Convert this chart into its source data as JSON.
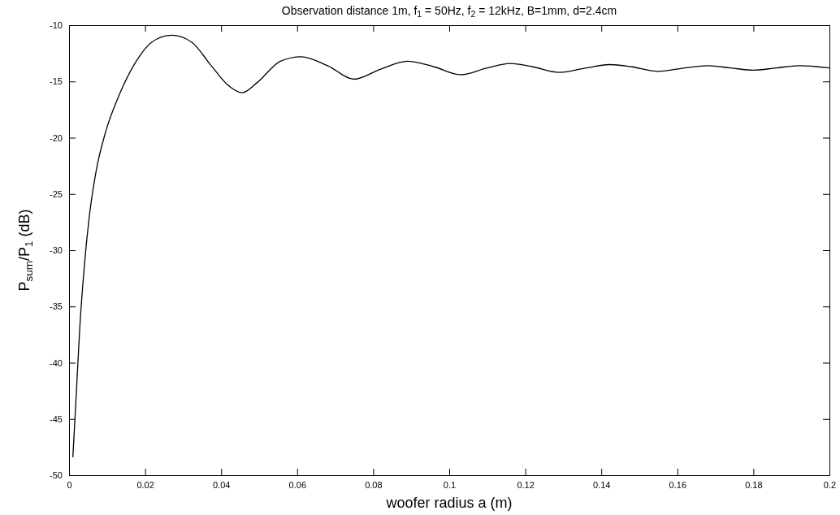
{
  "chart_data": {
    "type": "line",
    "title": "Observation distance 1m, f$_{1}$ = 50Hz, f$_{2}$ = 12kHz, B=1mm, d=2.4cm",
    "xlabel": "woofer radius a (m)",
    "ylabel": "P$_{sum}$/P$_{1}$ (dB)",
    "series": [
      {
        "color": "#000000",
        "x": [
          0.001,
          0.0019,
          0.0028,
          0.0041,
          0.0054,
          0.0071,
          0.0097,
          0.0132,
          0.0175,
          0.0218,
          0.027,
          0.0322,
          0.0374,
          0.0417,
          0.0456,
          0.0495,
          0.0556,
          0.061,
          0.068,
          0.075,
          0.082,
          0.089,
          0.096,
          0.103,
          0.11,
          0.116,
          0.122,
          0.129,
          0.136,
          0.142,
          0.148,
          0.155,
          0.162,
          0.168,
          0.174,
          0.18,
          0.186,
          0.192,
          0.2
        ],
        "values": [
          -48.4,
          -42.8,
          -37.0,
          -31.1,
          -26.8,
          -23.0,
          -19.4,
          -16.2,
          -13.3,
          -11.5,
          -10.9,
          -11.5,
          -13.6,
          -15.3,
          -16.0,
          -15.1,
          -13.2,
          -12.8,
          -13.6,
          -14.8,
          -13.9,
          -13.2,
          -13.7,
          -14.4,
          -13.8,
          -13.4,
          -13.7,
          -14.2,
          -13.8,
          -13.5,
          -13.7,
          -14.1,
          -13.8,
          -13.6,
          -13.8,
          -14.0,
          -13.8,
          -13.6,
          -13.8
        ]
      }
    ],
    "xlim": [
      0,
      0.2
    ],
    "xticks": [
      0,
      0.02,
      0.04,
      0.06,
      0.08,
      0.1,
      0.12,
      0.14,
      0.16,
      0.18,
      0.2
    ],
    "ylim": [
      -50,
      -10
    ],
    "yticks": [
      -50,
      -45,
      -40,
      -35,
      -30,
      -25,
      -20,
      -15,
      -10
    ],
    "grid": false,
    "marker": "none",
    "line_style": "solid"
  }
}
